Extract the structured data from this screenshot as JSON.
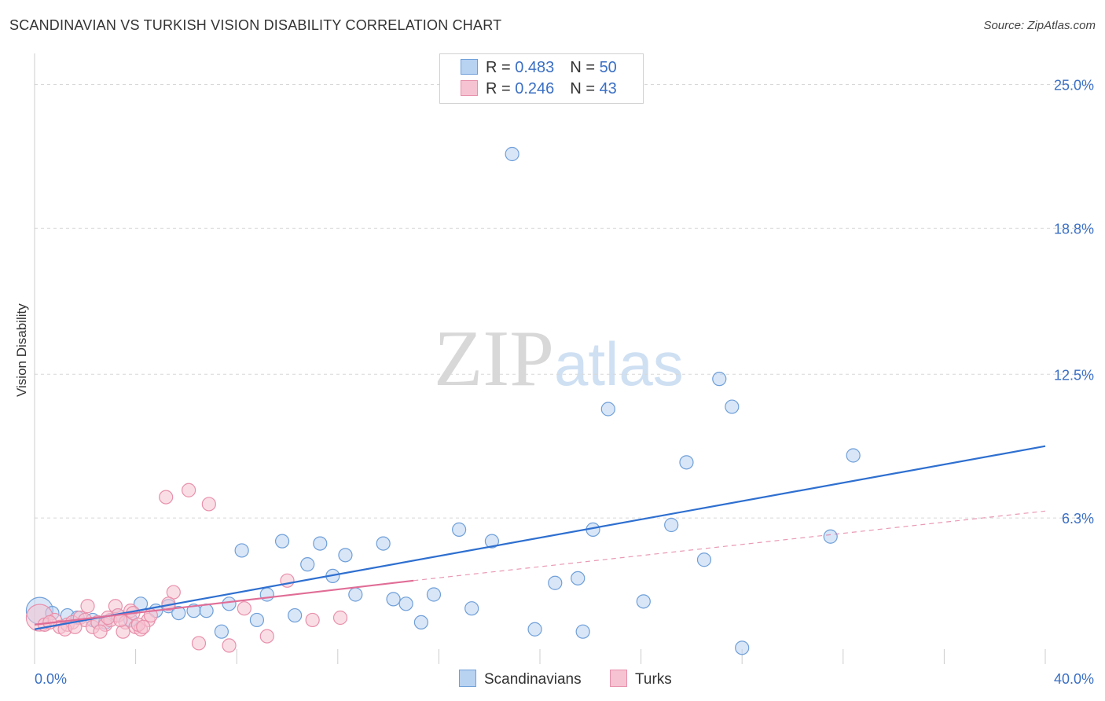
{
  "header": {
    "title": "SCANDINAVIAN VS TURKISH VISION DISABILITY CORRELATION CHART",
    "source": "Source: ZipAtlas.com"
  },
  "watermark": {
    "zip": "ZIP",
    "atlas": "atlas"
  },
  "legend": {
    "rows": [
      {
        "r_label": "R = ",
        "r_value": "0.483",
        "n_label": "N = ",
        "n_value": "50"
      },
      {
        "r_label": "R = ",
        "r_value": "0.246",
        "n_label": "N = ",
        "n_value": "43"
      }
    ]
  },
  "colors": {
    "blue_fill": "#b8d2f2",
    "blue_stroke": "#6f9fd8",
    "blue_line": "#2e6fd0",
    "pink_fill": "#f6c3d2",
    "pink_stroke": "#e890ab",
    "pink_line": "#e06d96",
    "tick_label": "#3a6fc4",
    "grid": "#d8d8d8"
  },
  "chart_data": {
    "type": "scatter",
    "title": "SCANDINAVIAN VS TURKISH VISION DISABILITY CORRELATION CHART",
    "xlabel": "",
    "ylabel": "Vision Disability",
    "xlim": [
      0,
      40
    ],
    "ylim": [
      0,
      26
    ],
    "x_tick_labels": [
      {
        "value": 0,
        "label": "0.0%"
      },
      {
        "value": 40,
        "label": "40.0%"
      }
    ],
    "y_tick_labels": [
      {
        "value": 6.3,
        "label": "6.3%"
      },
      {
        "value": 12.5,
        "label": "12.5%"
      },
      {
        "value": 18.8,
        "label": "18.8%"
      },
      {
        "value": 25.0,
        "label": "25.0%"
      }
    ],
    "x_minor_ticks": [
      4,
      8,
      12,
      16,
      20,
      24,
      28,
      32,
      36,
      40
    ],
    "series": [
      {
        "name": "Scandinavians",
        "color": "#b8d2f2",
        "stats": {
          "r": 0.483,
          "n": 50
        },
        "trend": {
          "x": [
            0,
            40
          ],
          "y": [
            1.5,
            9.4
          ],
          "dashed": false
        },
        "points": [
          {
            "x": 0.2,
            "y": 2.3,
            "big": true
          },
          {
            "x": 0.7,
            "y": 2.2
          },
          {
            "x": 1.3,
            "y": 2.1
          },
          {
            "x": 1.7,
            "y": 2.0
          },
          {
            "x": 2.3,
            "y": 1.9
          },
          {
            "x": 2.8,
            "y": 1.8
          },
          {
            "x": 3.3,
            "y": 2.1
          },
          {
            "x": 3.8,
            "y": 1.9
          },
          {
            "x": 4.2,
            "y": 2.6
          },
          {
            "x": 4.8,
            "y": 2.3
          },
          {
            "x": 5.3,
            "y": 2.5
          },
          {
            "x": 5.7,
            "y": 2.2
          },
          {
            "x": 6.3,
            "y": 2.3
          },
          {
            "x": 6.8,
            "y": 2.3
          },
          {
            "x": 7.4,
            "y": 1.4
          },
          {
            "x": 7.7,
            "y": 2.6
          },
          {
            "x": 8.2,
            "y": 4.9
          },
          {
            "x": 8.8,
            "y": 1.9
          },
          {
            "x": 9.2,
            "y": 3.0
          },
          {
            "x": 9.8,
            "y": 5.3
          },
          {
            "x": 10.3,
            "y": 2.1
          },
          {
            "x": 10.8,
            "y": 4.3
          },
          {
            "x": 11.3,
            "y": 5.2
          },
          {
            "x": 11.8,
            "y": 3.8
          },
          {
            "x": 12.3,
            "y": 4.7
          },
          {
            "x": 12.7,
            "y": 3.0
          },
          {
            "x": 13.8,
            "y": 5.2
          },
          {
            "x": 14.2,
            "y": 2.8
          },
          {
            "x": 14.7,
            "y": 2.6
          },
          {
            "x": 15.3,
            "y": 1.8
          },
          {
            "x": 15.8,
            "y": 3.0
          },
          {
            "x": 16.8,
            "y": 5.8
          },
          {
            "x": 17.3,
            "y": 2.4
          },
          {
            "x": 18.1,
            "y": 5.3
          },
          {
            "x": 18.9,
            "y": 22.0
          },
          {
            "x": 19.8,
            "y": 1.5
          },
          {
            "x": 20.6,
            "y": 3.5
          },
          {
            "x": 21.5,
            "y": 3.7
          },
          {
            "x": 21.7,
            "y": 1.4
          },
          {
            "x": 22.1,
            "y": 5.8
          },
          {
            "x": 22.7,
            "y": 11.0
          },
          {
            "x": 24.1,
            "y": 2.7
          },
          {
            "x": 25.2,
            "y": 6.0
          },
          {
            "x": 25.8,
            "y": 8.7
          },
          {
            "x": 26.5,
            "y": 4.5
          },
          {
            "x": 27.1,
            "y": 12.3
          },
          {
            "x": 27.6,
            "y": 11.1
          },
          {
            "x": 28.0,
            "y": 0.7
          },
          {
            "x": 31.5,
            "y": 5.5
          },
          {
            "x": 32.4,
            "y": 9.0
          }
        ]
      },
      {
        "name": "Turks",
        "color": "#f6c3d2",
        "stats": {
          "r": 0.246,
          "n": 43
        },
        "trend": {
          "x": [
            0,
            15
          ],
          "y": [
            1.7,
            3.6
          ],
          "dashed": false
        },
        "trend_extension": {
          "x": [
            15,
            40
          ],
          "y": [
            3.6,
            6.6
          ],
          "dashed": true
        },
        "points": [
          {
            "x": 0.2,
            "y": 2.0,
            "big": true
          },
          {
            "x": 0.4,
            "y": 1.7
          },
          {
            "x": 0.8,
            "y": 1.9
          },
          {
            "x": 1.0,
            "y": 1.6
          },
          {
            "x": 1.3,
            "y": 1.7
          },
          {
            "x": 1.5,
            "y": 1.8
          },
          {
            "x": 1.8,
            "y": 2.0
          },
          {
            "x": 2.0,
            "y": 1.9
          },
          {
            "x": 2.3,
            "y": 1.6
          },
          {
            "x": 2.5,
            "y": 1.8
          },
          {
            "x": 2.8,
            "y": 1.7
          },
          {
            "x": 2.6,
            "y": 1.4
          },
          {
            "x": 3.0,
            "y": 1.9
          },
          {
            "x": 3.2,
            "y": 2.5
          },
          {
            "x": 3.3,
            "y": 2.1
          },
          {
            "x": 3.6,
            "y": 1.8
          },
          {
            "x": 3.8,
            "y": 2.3
          },
          {
            "x": 4.0,
            "y": 1.6
          },
          {
            "x": 4.2,
            "y": 1.5
          },
          {
            "x": 4.5,
            "y": 1.9
          },
          {
            "x": 3.9,
            "y": 2.2
          },
          {
            "x": 3.5,
            "y": 1.4
          },
          {
            "x": 2.1,
            "y": 2.5
          },
          {
            "x": 1.2,
            "y": 1.5
          },
          {
            "x": 0.6,
            "y": 1.8
          },
          {
            "x": 5.2,
            "y": 7.2
          },
          {
            "x": 6.1,
            "y": 7.5
          },
          {
            "x": 6.9,
            "y": 6.9
          },
          {
            "x": 5.5,
            "y": 3.1
          },
          {
            "x": 5.3,
            "y": 2.6
          },
          {
            "x": 6.5,
            "y": 0.9
          },
          {
            "x": 7.7,
            "y": 0.8
          },
          {
            "x": 8.3,
            "y": 2.4
          },
          {
            "x": 9.2,
            "y": 1.2
          },
          {
            "x": 10.0,
            "y": 3.6
          },
          {
            "x": 11.0,
            "y": 1.9
          },
          {
            "x": 12.1,
            "y": 2.0
          },
          {
            "x": 4.1,
            "y": 1.7
          },
          {
            "x": 2.9,
            "y": 2.0
          },
          {
            "x": 1.6,
            "y": 1.6
          },
          {
            "x": 4.6,
            "y": 2.1
          },
          {
            "x": 3.4,
            "y": 1.9
          },
          {
            "x": 4.3,
            "y": 1.6
          }
        ]
      }
    ]
  }
}
